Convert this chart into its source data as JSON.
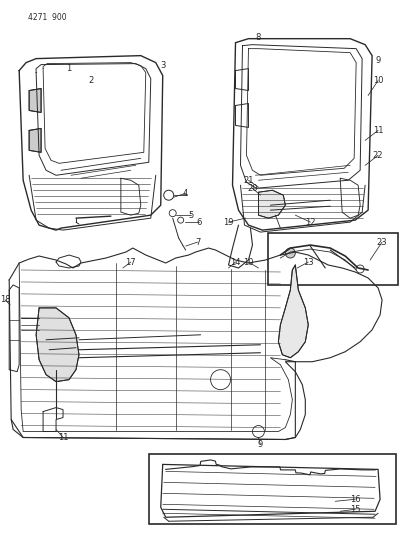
{
  "catalog_number": "4271  900",
  "background_color": "#ffffff",
  "line_color": "#2a2a2a",
  "figsize": [
    4.08,
    5.33
  ],
  "dpi": 100,
  "font_size_label": 6.0,
  "font_size_catalog": 5.5
}
